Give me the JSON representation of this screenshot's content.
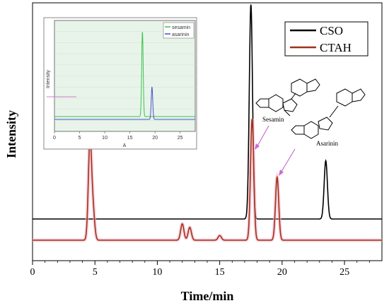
{
  "chart_data": [
    {
      "type": "line",
      "xlabel": "Time/min",
      "ylabel": "Intensity",
      "xlim": [
        0,
        28
      ],
      "xticks": [
        0,
        5,
        10,
        15,
        20,
        25
      ],
      "legend": {
        "placement": "top-right"
      },
      "series": [
        {
          "name": "CSO",
          "color": "#000000",
          "peaks": [
            {
              "x": 17.5,
              "height": 0.92
            },
            {
              "x": 23.5,
              "height": 0.25
            }
          ]
        },
        {
          "name": "CTAH",
          "color": "#a0301a",
          "peaks": [
            {
              "x": 4.6,
              "height": 0.42
            },
            {
              "x": 4.85,
              "height": 0.12
            },
            {
              "x": 12.0,
              "height": 0.07
            },
            {
              "x": 12.6,
              "height": 0.055
            },
            {
              "x": 15.0,
              "height": 0.02
            },
            {
              "x": 17.6,
              "height": 0.52
            },
            {
              "x": 19.6,
              "height": 0.27
            }
          ]
        }
      ],
      "annotations": [
        "Sesamin",
        "Asarinin"
      ]
    },
    {
      "type": "line",
      "title": "",
      "xlabel": "A",
      "ylabel": "Intensity",
      "xlim": [
        0,
        28
      ],
      "xticks": [
        0,
        5,
        10,
        15,
        20,
        25
      ],
      "legend": {
        "placement": "top-right"
      },
      "series": [
        {
          "name": "sesamin",
          "color": "#3cc24a",
          "peaks": [
            {
              "x": 17.5,
              "height": 0.92
            }
          ]
        },
        {
          "name": "asarinin",
          "color": "#4a50c8",
          "peaks": [
            {
              "x": 19.4,
              "height": 0.35
            }
          ]
        }
      ]
    }
  ]
}
